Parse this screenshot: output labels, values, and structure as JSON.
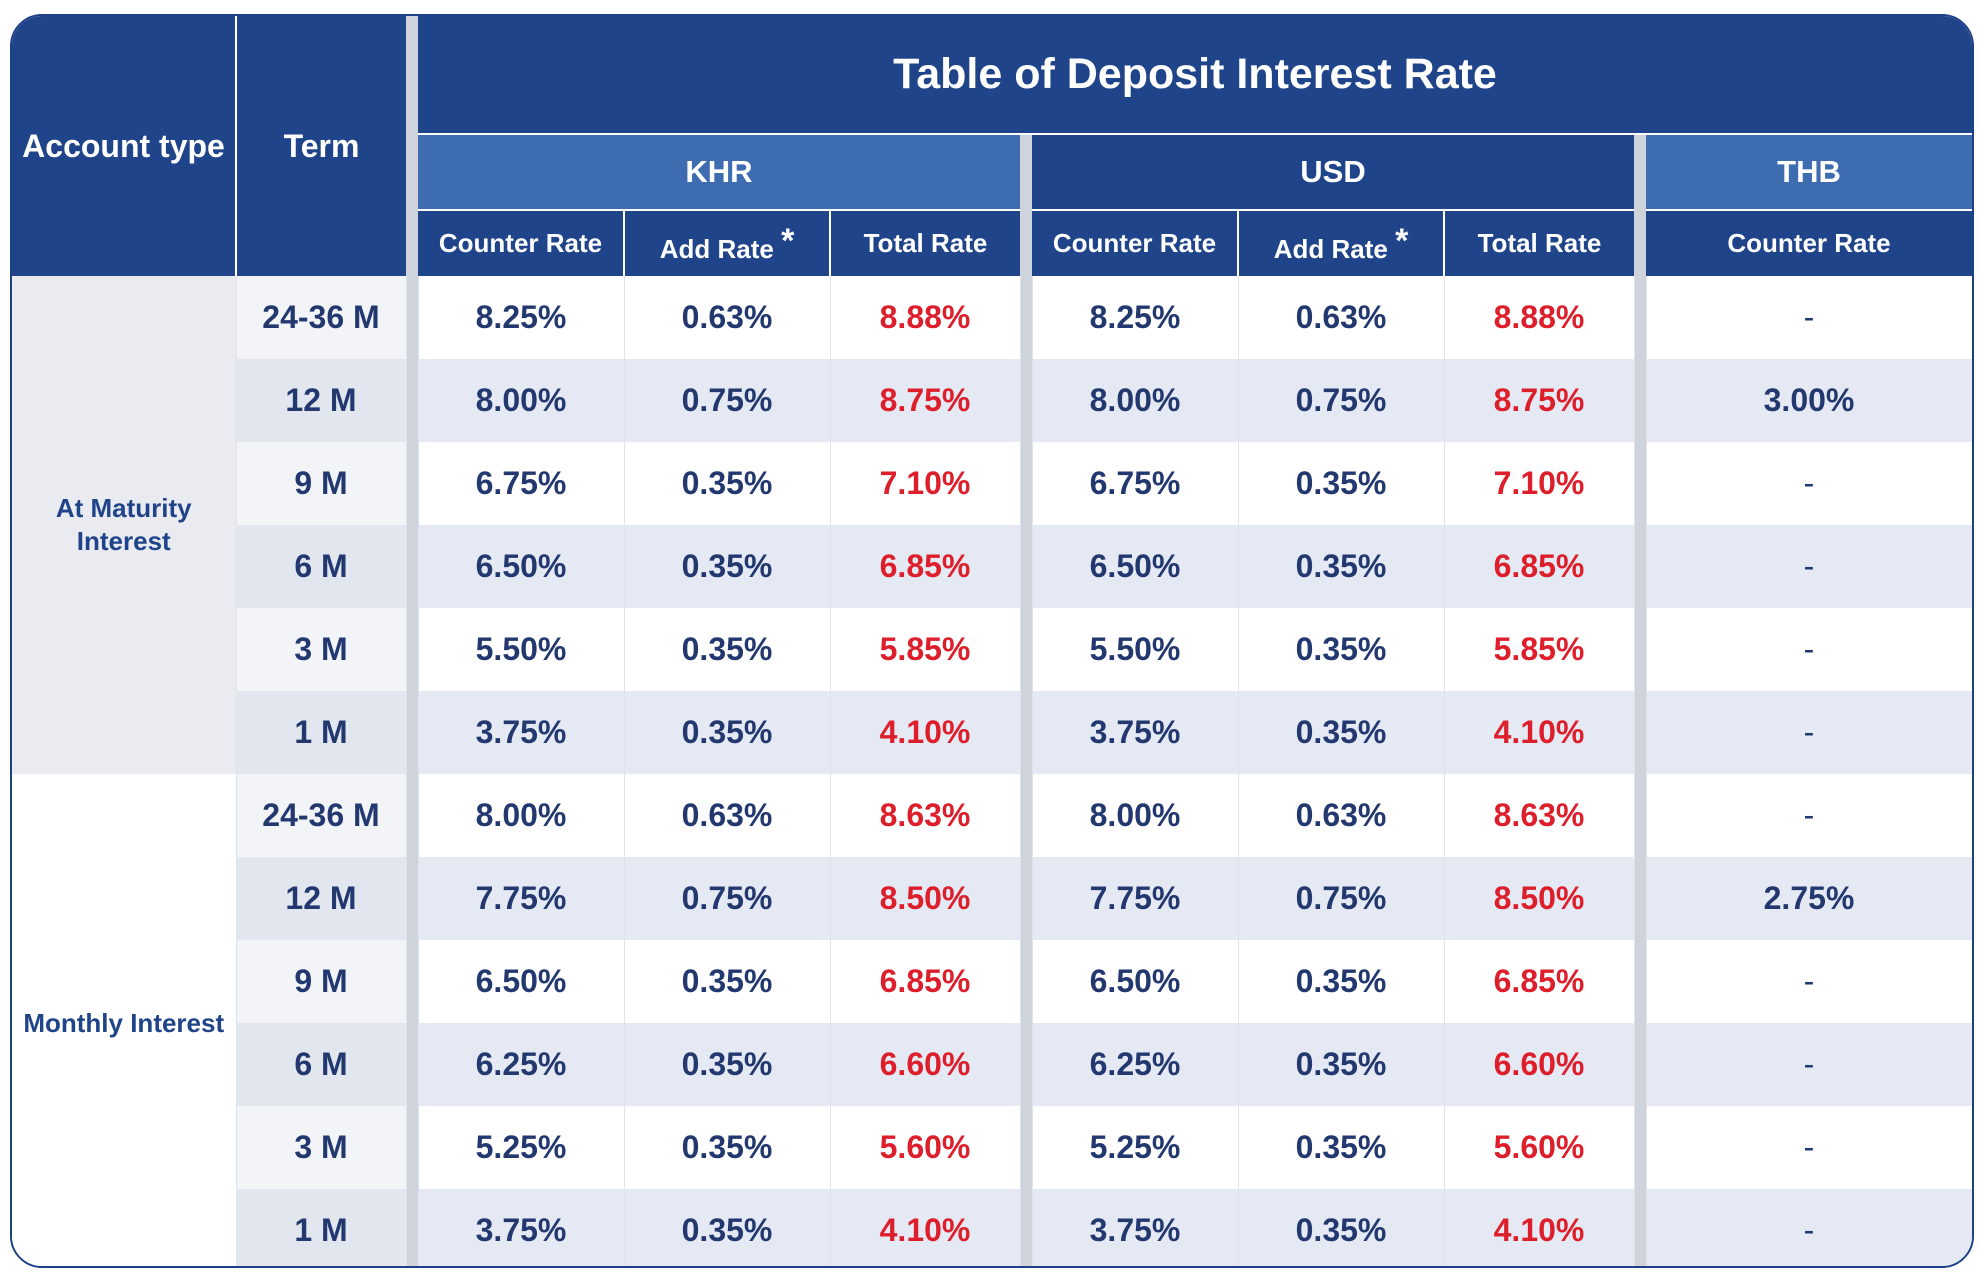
{
  "header": {
    "account_type": "Account type",
    "term": "Term",
    "title": "Table of Deposit Interest Rate",
    "currencies": [
      "KHR",
      "USD",
      "THB"
    ],
    "counter_rate": "Counter Rate",
    "add_rate": "Add Rate",
    "asterisk": "*",
    "total_rate": "Total Rate"
  },
  "groups": [
    {
      "name": "At Maturity Interest",
      "rows": [
        {
          "term": "24-36 M",
          "khr": [
            "8.25%",
            "0.63%",
            "8.88%"
          ],
          "usd": [
            "8.25%",
            "0.63%",
            "8.88%"
          ],
          "thb": "-"
        },
        {
          "term": "12 M",
          "khr": [
            "8.00%",
            "0.75%",
            "8.75%"
          ],
          "usd": [
            "8.00%",
            "0.75%",
            "8.75%"
          ],
          "thb": "3.00%"
        },
        {
          "term": "9 M",
          "khr": [
            "6.75%",
            "0.35%",
            "7.10%"
          ],
          "usd": [
            "6.75%",
            "0.35%",
            "7.10%"
          ],
          "thb": "-"
        },
        {
          "term": "6 M",
          "khr": [
            "6.50%",
            "0.35%",
            "6.85%"
          ],
          "usd": [
            "6.50%",
            "0.35%",
            "6.85%"
          ],
          "thb": "-"
        },
        {
          "term": "3 M",
          "khr": [
            "5.50%",
            "0.35%",
            "5.85%"
          ],
          "usd": [
            "5.50%",
            "0.35%",
            "5.85%"
          ],
          "thb": "-"
        },
        {
          "term": "1 M",
          "khr": [
            "3.75%",
            "0.35%",
            "4.10%"
          ],
          "usd": [
            "3.75%",
            "0.35%",
            "4.10%"
          ],
          "thb": "-"
        }
      ]
    },
    {
      "name": "Monthly Interest",
      "rows": [
        {
          "term": "24-36 M",
          "khr": [
            "8.00%",
            "0.63%",
            "8.63%"
          ],
          "usd": [
            "8.00%",
            "0.63%",
            "8.63%"
          ],
          "thb": "-"
        },
        {
          "term": "12 M",
          "khr": [
            "7.75%",
            "0.75%",
            "8.50%"
          ],
          "usd": [
            "7.75%",
            "0.75%",
            "8.50%"
          ],
          "thb": "2.75%"
        },
        {
          "term": "9 M",
          "khr": [
            "6.50%",
            "0.35%",
            "6.85%"
          ],
          "usd": [
            "6.50%",
            "0.35%",
            "6.85%"
          ],
          "thb": "-"
        },
        {
          "term": "6 M",
          "khr": [
            "6.25%",
            "0.35%",
            "6.60%"
          ],
          "usd": [
            "6.25%",
            "0.35%",
            "6.60%"
          ],
          "thb": "-"
        },
        {
          "term": "3 M",
          "khr": [
            "5.25%",
            "0.35%",
            "5.60%"
          ],
          "usd": [
            "5.25%",
            "0.35%",
            "5.60%"
          ],
          "thb": "-"
        },
        {
          "term": "1 M",
          "khr": [
            "3.75%",
            "0.35%",
            "4.10%"
          ],
          "usd": [
            "3.75%",
            "0.35%",
            "4.10%"
          ],
          "thb": "-"
        }
      ]
    }
  ]
}
